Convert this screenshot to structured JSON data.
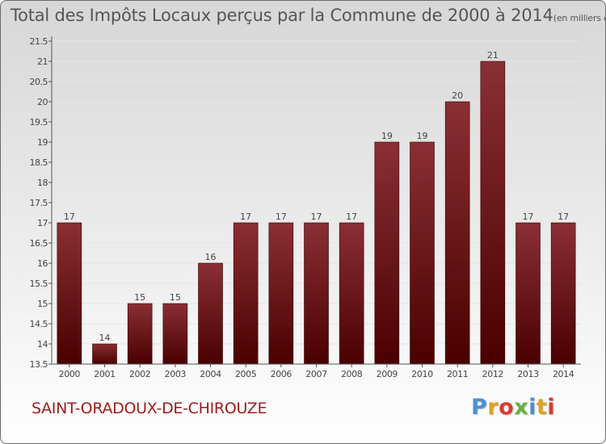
{
  "header": {
    "title": "Total des Impôts Locaux perçus par la Commune de 2000 à 2014",
    "unit": "(en milliers d'€)"
  },
  "footer": {
    "commune": "SAINT-ORADOUX-DE-CHIROUZE",
    "brand": [
      "P",
      "r",
      "o",
      "x",
      "i",
      "t",
      "i"
    ],
    "brand_colors": [
      "#4a8fd6",
      "#e0a020",
      "#d83c2c",
      "#6ab03a",
      "#4a8fd6",
      "#e0a020",
      "#d83c2c"
    ]
  },
  "colors": {
    "bar_top": "#8a2f35",
    "bar_bottom": "#4a0000",
    "bar_border": "#3a0000",
    "axis": "#555555",
    "grid": "#e6e6e6",
    "text": "#444444"
  },
  "chart_data": {
    "type": "bar",
    "title": "Total des Impôts Locaux perçus par la Commune de 2000 à 2014",
    "ylabel": "en milliers d'€",
    "xlabel": "",
    "categories": [
      "2000",
      "2001",
      "2002",
      "2003",
      "2004",
      "2005",
      "2006",
      "2007",
      "2008",
      "2009",
      "2010",
      "2011",
      "2012",
      "2013",
      "2014"
    ],
    "values": [
      17,
      14,
      15,
      15,
      16,
      17,
      17,
      17,
      17,
      19,
      19,
      20,
      21,
      17,
      17
    ],
    "labels": [
      "17",
      "14",
      "15",
      "15",
      "16",
      "17",
      "17",
      "17",
      "17",
      "19",
      "19",
      "20",
      "21",
      "17",
      "17"
    ],
    "ylim": [
      13.5,
      21.5
    ],
    "yticks": [
      "13.5",
      "14",
      "14.5",
      "15",
      "15.5",
      "16",
      "16.5",
      "17",
      "17.5",
      "18",
      "18.5",
      "19",
      "19.5",
      "20",
      "20.5",
      "21",
      "21.5"
    ],
    "grid": true
  }
}
